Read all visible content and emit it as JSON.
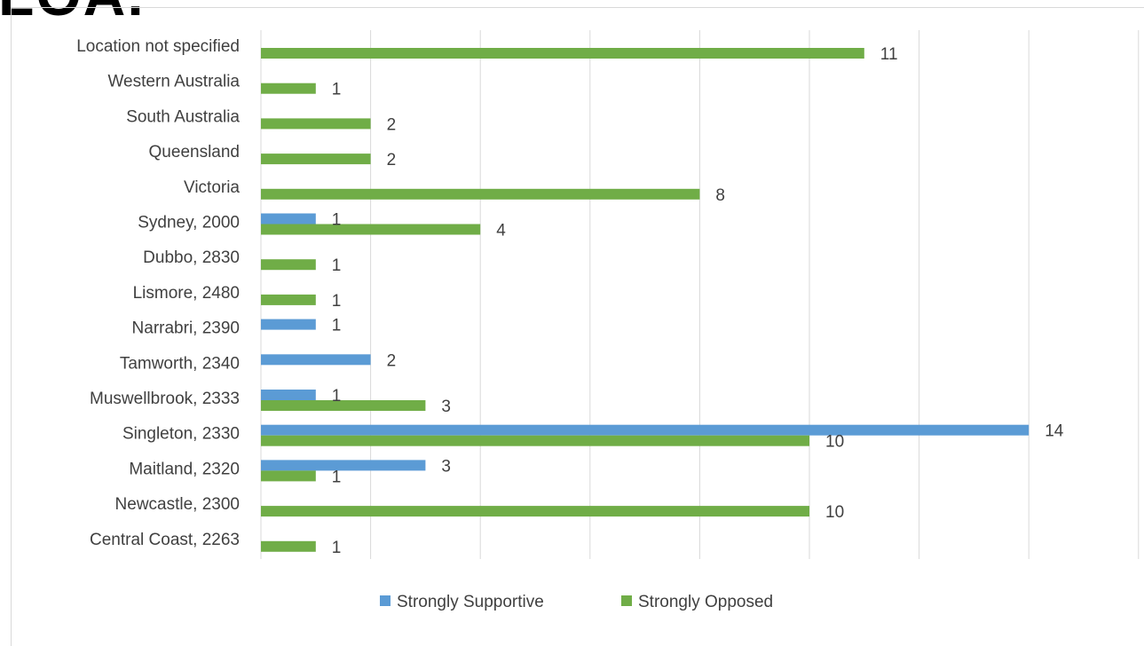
{
  "heading_fragment": "LOA.",
  "chart_data": {
    "type": "bar",
    "orientation": "horizontal",
    "title": "",
    "xlabel": "",
    "ylabel": "",
    "xlim": [
      0,
      16
    ],
    "grid": true,
    "legend_position": "bottom",
    "categories": [
      "Location not specified",
      "Western Australia",
      "South Australia",
      "Queensland",
      "Victoria",
      "Sydney, 2000",
      "Dubbo, 2830",
      "Lismore, 2480",
      "Narrabri, 2390",
      "Tamworth, 2340",
      "Muswellbrook, 2333",
      "Singleton, 2330",
      "Maitland, 2320",
      "Newcastle, 2300",
      "Central Coast, 2263"
    ],
    "series": [
      {
        "name": "Strongly Supportive",
        "color": "#5b9bd5",
        "values": [
          null,
          null,
          null,
          null,
          null,
          1,
          null,
          null,
          1,
          2,
          1,
          14,
          3,
          null,
          null
        ]
      },
      {
        "name": "Strongly Opposed",
        "color": "#70ad47",
        "values": [
          11,
          1,
          2,
          2,
          8,
          4,
          1,
          1,
          null,
          null,
          3,
          10,
          1,
          10,
          1
        ]
      }
    ]
  }
}
